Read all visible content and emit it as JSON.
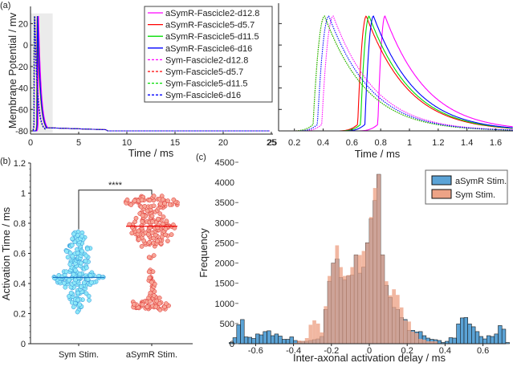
{
  "chart_data": [
    {
      "id": "a-left",
      "panel_label": "(a)",
      "type": "line",
      "xlabel": "Time / ms",
      "ylabel": "Membrane Potential / mv",
      "xlim": [
        0,
        25
      ],
      "ylim": [
        -82,
        30
      ],
      "xticks": [
        0,
        5,
        10,
        15,
        20,
        25
      ],
      "yticks": [
        20,
        0,
        -20,
        -40,
        -60,
        -80
      ],
      "highlight_region": {
        "x": [
          0,
          2.3
        ],
        "y": [
          -82,
          30
        ],
        "color": "#ebebeb"
      },
      "legend": {
        "placement": "top-right"
      },
      "series": [
        {
          "name": "aSymR-Fascicle2-d12.8",
          "color": "#ff00ff",
          "dash": "solid",
          "peak_time": 0.83,
          "onset": 0.78
        },
        {
          "name": "aSymR-Fascicle5-d5.7",
          "color": "#ff0000",
          "dash": "solid",
          "peak_time": 0.7,
          "onset": 0.64
        },
        {
          "name": "aSymR-Fascicle5-d11.5",
          "color": "#00dd00",
          "dash": "solid",
          "peak_time": 0.72,
          "onset": 0.66
        },
        {
          "name": "aSymR-Fascicle6-d16",
          "color": "#0000ff",
          "dash": "solid",
          "peak_time": 0.75,
          "onset": 0.69
        },
        {
          "name": "Sym-Fascicle2-d12.8",
          "color": "#ff00ff",
          "dash": "dotted",
          "peak_time": 0.47,
          "onset": 0.39
        },
        {
          "name": "Sym-Fascicle5-d5.7",
          "color": "#ff0000",
          "dash": "dotted",
          "peak_time": 0.41,
          "onset": 0.33
        },
        {
          "name": "Sym-Fascicle5-d11.5",
          "color": "#00dd00",
          "dash": "dotted",
          "peak_time": 0.41,
          "onset": 0.33
        },
        {
          "name": "Sym-Fascicle6-d16",
          "color": "#0000ff",
          "dash": "dotted",
          "peak_time": 0.44,
          "onset": 0.36
        }
      ],
      "peak_mv": 27,
      "rest_mv": -80
    },
    {
      "id": "a-right",
      "type": "line",
      "xlabel": "Time / ms",
      "xlim": [
        0.09,
        1.72
      ],
      "ylim": [
        -82,
        30
      ],
      "xticks": [
        0.2,
        0.4,
        0.6,
        0.8,
        1,
        1.2,
        1.4,
        1.6
      ],
      "xtick_labels": [
        "0.2",
        "0.4",
        "0.6",
        "0.8",
        "1",
        "1.2",
        "1.4",
        "1.6"
      ],
      "left_edge_label": "25",
      "yticks": [
        20,
        0,
        -20,
        -40,
        -60,
        -80
      ],
      "note": "zoom of the shaded region of the left plot; same series"
    },
    {
      "id": "b",
      "panel_label": "(b)",
      "type": "scatter",
      "ylabel": "Activation Time / ms",
      "ylim": [
        0,
        1.2
      ],
      "yticks": [
        0,
        0.2,
        0.4,
        0.6,
        0.8,
        1,
        1.2
      ],
      "ytick_labels": [
        "0",
        "0.2",
        "0.4",
        "0.6",
        "0.8",
        "1",
        "1.2"
      ],
      "categories": [
        "Sym Stim.",
        "aSymR Stim."
      ],
      "groups": [
        {
          "name": "Sym Stim.",
          "fill": "#8ee8f8",
          "edge": "#2a8fd8",
          "median": 0.44,
          "median_color": "#1f77c4",
          "density": [
            [
              0.22,
              0.3
            ],
            [
              0.26,
              1.5
            ],
            [
              0.3,
              2.2
            ],
            [
              0.34,
              1.6
            ],
            [
              0.38,
              2.6
            ],
            [
              0.42,
              4.2
            ],
            [
              0.44,
              5.0
            ],
            [
              0.47,
              3.2
            ],
            [
              0.5,
              1.8
            ],
            [
              0.54,
              2.0
            ],
            [
              0.58,
              2.3
            ],
            [
              0.62,
              2.4
            ],
            [
              0.66,
              1.8
            ],
            [
              0.7,
              1.5
            ],
            [
              0.73,
              1.2
            ]
          ],
          "range": [
            0.22,
            0.74
          ]
        },
        {
          "name": "aSymR Stim.",
          "fill": "#f7a596",
          "edge": "#dd2a2a",
          "median": 0.78,
          "median_color": "#ee0000",
          "density": [
            [
              0.24,
              3.0
            ],
            [
              0.26,
              3.6
            ],
            [
              0.29,
              1.6
            ],
            [
              0.33,
              0.8
            ],
            [
              0.37,
              0.6
            ],
            [
              0.41,
              0.6
            ],
            [
              0.45,
              0.6
            ],
            [
              0.49,
              0.6
            ],
            [
              0.57,
              0.6
            ],
            [
              0.66,
              2.2
            ],
            [
              0.7,
              3.2
            ],
            [
              0.74,
              4.0
            ],
            [
              0.78,
              4.6
            ],
            [
              0.82,
              3.4
            ],
            [
              0.86,
              2.4
            ],
            [
              0.9,
              2.8
            ],
            [
              0.94,
              5.0
            ],
            [
              0.97,
              2.4
            ]
          ],
          "range": [
            0.24,
            0.98
          ]
        }
      ],
      "significance": {
        "label": "****",
        "y": 1.02
      }
    },
    {
      "id": "c",
      "panel_label": "(c)",
      "type": "bar",
      "xlabel": "Inter-axonal activation delay / ms",
      "ylabel": "Frequency",
      "xlim": [
        -0.74,
        0.74
      ],
      "ylim": [
        0,
        4500
      ],
      "xticks": [
        -0.6,
        -0.4,
        -0.2,
        0,
        0.2,
        0.4,
        0.6
      ],
      "yticks": [
        0,
        500,
        1000,
        1500,
        2000,
        2500,
        3000,
        3500,
        4000,
        4500
      ],
      "bin_width": 0.02,
      "bin_start": -0.74,
      "legend": {
        "placement": "top-right",
        "entries": [
          "aSymR Stim.",
          "Sym Stim."
        ]
      },
      "series": [
        {
          "name": "aSymR Stim.",
          "color": "#5ba3d6",
          "values": [
            30,
            150,
            470,
            600,
            170,
            160,
            130,
            240,
            220,
            300,
            320,
            200,
            240,
            190,
            110,
            110,
            170,
            80,
            50,
            60,
            60,
            80,
            100,
            120,
            180,
            850,
            1550,
            2000,
            2100,
            1640,
            1580,
            1680,
            1700,
            2200,
            1750,
            1900,
            2500,
            3100,
            3550,
            4200,
            2200,
            1450,
            1150,
            900,
            850,
            650,
            600,
            330,
            330,
            290,
            300,
            200,
            140,
            110,
            100,
            80,
            30,
            60,
            150,
            140,
            490,
            640,
            650,
            490,
            420,
            300,
            180,
            120,
            200,
            180,
            240,
            450,
            360,
            30
          ]
        },
        {
          "name": "Sym Stim.",
          "color": "#eda386",
          "values": [
            0,
            0,
            0,
            0,
            0,
            0,
            0,
            0,
            0,
            0,
            0,
            0,
            0,
            0,
            0,
            0,
            0,
            20,
            80,
            70,
            140,
            470,
            580,
            500,
            280,
            930,
            1680,
            2000,
            2440,
            1900,
            1680,
            1700,
            1900,
            2200,
            2200,
            2300,
            2500,
            3140,
            3860,
            4200,
            2200,
            1550,
            1200,
            1350,
            1210,
            900,
            580,
            550,
            300,
            260,
            120,
            100,
            60,
            60,
            60,
            0,
            0,
            0,
            0,
            0,
            0,
            0,
            0,
            0,
            0,
            0,
            0,
            0,
            0,
            0,
            0,
            0,
            0,
            0
          ]
        }
      ]
    }
  ]
}
